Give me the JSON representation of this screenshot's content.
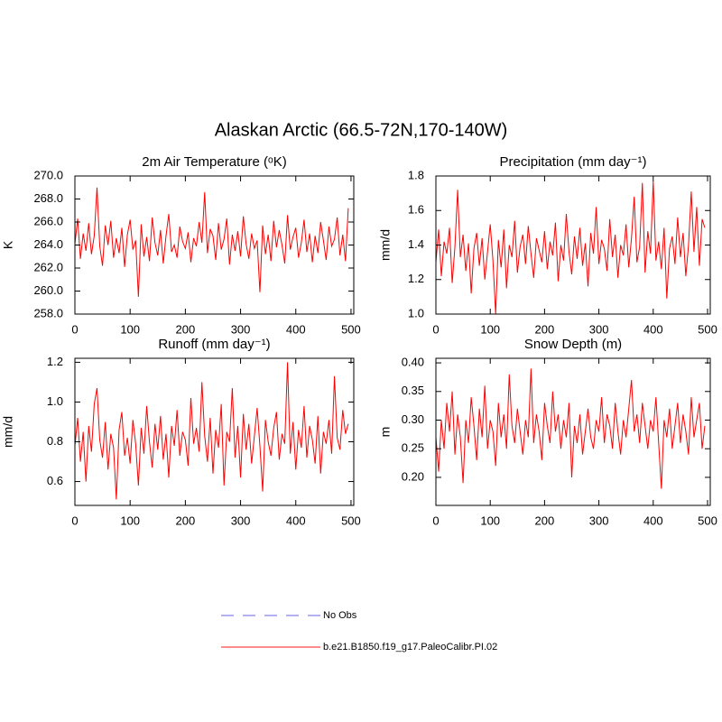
{
  "title": "Alaskan Arctic (66.5-72N,170-140W)",
  "legend": [
    {
      "label": "No Obs",
      "color": "#9999ee",
      "dash": "dashed"
    },
    {
      "label": "b.e21.B1850.f19_g17.PaleoCalibr.PI.02",
      "color": "#ff6666",
      "dash": "solid"
    }
  ],
  "chart_data": [
    {
      "type": "line",
      "title": "2m Air Temperature (ᵒK)",
      "ylabel": "K",
      "x": [
        0,
        5,
        10,
        15,
        20,
        25,
        30,
        35,
        40,
        45,
        50,
        55,
        60,
        65,
        70,
        75,
        80,
        85,
        90,
        95,
        100,
        105,
        110,
        115,
        120,
        125,
        130,
        135,
        140,
        145,
        150,
        155,
        160,
        165,
        170,
        175,
        180,
        185,
        190,
        195,
        200,
        205,
        210,
        215,
        220,
        225,
        230,
        235,
        240,
        245,
        250,
        255,
        260,
        265,
        270,
        275,
        280,
        285,
        290,
        295,
        300,
        305,
        310,
        315,
        320,
        325,
        330,
        335,
        340,
        345,
        350,
        355,
        360,
        365,
        370,
        375,
        380,
        385,
        390,
        395,
        400,
        405,
        410,
        415,
        420,
        425,
        430,
        435,
        440,
        445,
        450,
        455,
        460,
        465,
        470,
        475,
        480,
        485,
        490,
        495
      ],
      "xlim": [
        0,
        505
      ],
      "xticks": [
        0,
        100,
        200,
        300,
        400,
        500
      ],
      "ylim": [
        258,
        270
      ],
      "yticks": [
        {
          "value": 258,
          "label": "258.0"
        },
        {
          "value": 260,
          "label": "260.0"
        },
        {
          "value": 262,
          "label": "262.0"
        },
        {
          "value": 264,
          "label": "264.0"
        },
        {
          "value": 266,
          "label": "266.0"
        },
        {
          "value": 268,
          "label": "268.0"
        },
        {
          "value": 270,
          "label": "270.0"
        }
      ],
      "series": [
        {
          "color": "#ff0000",
          "values": [
            264.1,
            266.3,
            262.8,
            265.0,
            263.5,
            265.9,
            263.2,
            264.8,
            269.0,
            263.9,
            262.2,
            265.7,
            264.0,
            266.1,
            262.9,
            264.6,
            263.3,
            265.5,
            262.1,
            264.9,
            266.2,
            263.6,
            264.4,
            259.5,
            265.8,
            263.0,
            264.7,
            262.6,
            266.4,
            264.2,
            263.1,
            265.3,
            262.4,
            264.8,
            266.7,
            263.4,
            264.0,
            262.9,
            265.6,
            264.3,
            263.7,
            265.1,
            262.5,
            264.6,
            263.9,
            266.0,
            264.2,
            268.6,
            263.3,
            265.4,
            264.8,
            262.7,
            265.9,
            263.6,
            264.5,
            266.3,
            262.3,
            264.9,
            263.5,
            265.2,
            263.0,
            266.5,
            264.1,
            262.8,
            265.0,
            263.7,
            264.4,
            259.9,
            265.7,
            263.2,
            264.9,
            262.6,
            266.1,
            263.8,
            265.3,
            264.0,
            262.4,
            266.6,
            263.6,
            264.7,
            265.5,
            262.9,
            264.2,
            266.2,
            263.4,
            265.0,
            262.5,
            264.8,
            263.3,
            266.0,
            264.4,
            262.7,
            265.6,
            263.9,
            264.5,
            266.4,
            263.1,
            264.9,
            262.6,
            267.2
          ]
        }
      ]
    },
    {
      "type": "line",
      "title": "Precipitation (mm day⁻¹)",
      "ylabel": "mm/d",
      "x": [
        0,
        5,
        10,
        15,
        20,
        25,
        30,
        35,
        40,
        45,
        50,
        55,
        60,
        65,
        70,
        75,
        80,
        85,
        90,
        95,
        100,
        105,
        110,
        115,
        120,
        125,
        130,
        135,
        140,
        145,
        150,
        155,
        160,
        165,
        170,
        175,
        180,
        185,
        190,
        195,
        200,
        205,
        210,
        215,
        220,
        225,
        230,
        235,
        240,
        245,
        250,
        255,
        260,
        265,
        270,
        275,
        280,
        285,
        290,
        295,
        300,
        305,
        310,
        315,
        320,
        325,
        330,
        335,
        340,
        345,
        350,
        355,
        360,
        365,
        370,
        375,
        380,
        385,
        390,
        395,
        400,
        405,
        410,
        415,
        420,
        425,
        430,
        435,
        440,
        445,
        450,
        455,
        460,
        465,
        470,
        475,
        480,
        485,
        490,
        495
      ],
      "xlim": [
        0,
        505
      ],
      "xticks": [
        0,
        100,
        200,
        300,
        400,
        500
      ],
      "ylim": [
        1.0,
        1.8
      ],
      "yticks": [
        {
          "value": 1.0,
          "label": "1.0"
        },
        1.2,
        1.4,
        1.6,
        1.8
      ],
      "series": [
        {
          "color": "#ff0000",
          "values": [
            1.3,
            1.49,
            1.22,
            1.42,
            1.35,
            1.5,
            1.18,
            1.39,
            1.72,
            1.33,
            1.46,
            1.25,
            1.41,
            1.12,
            1.38,
            1.47,
            1.28,
            1.44,
            1.2,
            1.36,
            1.52,
            1.31,
            1.0,
            1.43,
            1.27,
            1.49,
            1.15,
            1.4,
            1.33,
            1.54,
            1.24,
            1.39,
            1.46,
            1.29,
            1.51,
            1.35,
            1.21,
            1.44,
            1.37,
            1.3,
            1.48,
            1.26,
            1.42,
            1.34,
            1.53,
            1.19,
            1.4,
            1.31,
            1.58,
            1.36,
            1.23,
            1.45,
            1.32,
            1.5,
            1.28,
            1.41,
            1.16,
            1.47,
            1.35,
            1.62,
            1.29,
            1.43,
            1.38,
            1.25,
            1.55,
            1.33,
            1.46,
            1.21,
            1.4,
            1.34,
            1.52,
            1.27,
            1.44,
            1.68,
            1.3,
            1.39,
            1.76,
            1.24,
            1.48,
            1.35,
            1.77,
            1.31,
            1.42,
            1.26,
            1.5,
            1.09,
            1.38,
            1.45,
            1.29,
            1.56,
            1.33,
            1.47,
            1.22,
            1.4,
            1.71,
            1.36,
            1.62,
            1.28,
            1.55,
            1.5
          ]
        }
      ]
    },
    {
      "type": "line",
      "title": "Runoff (mm day⁻¹)",
      "ylabel": "mm/d",
      "x": [
        0,
        5,
        10,
        15,
        20,
        25,
        30,
        35,
        40,
        45,
        50,
        55,
        60,
        65,
        70,
        75,
        80,
        85,
        90,
        95,
        100,
        105,
        110,
        115,
        120,
        125,
        130,
        135,
        140,
        145,
        150,
        155,
        160,
        165,
        170,
        175,
        180,
        185,
        190,
        195,
        200,
        205,
        210,
        215,
        220,
        225,
        230,
        235,
        240,
        245,
        250,
        255,
        260,
        265,
        270,
        275,
        280,
        285,
        290,
        295,
        300,
        305,
        310,
        315,
        320,
        325,
        330,
        335,
        340,
        345,
        350,
        355,
        360,
        365,
        370,
        375,
        380,
        385,
        390,
        395,
        400,
        405,
        410,
        415,
        420,
        425,
        430,
        435,
        440,
        445,
        450,
        455,
        460,
        465,
        470,
        475,
        480,
        485,
        490,
        495
      ],
      "xlim": [
        0,
        505
      ],
      "xticks": [
        0,
        100,
        200,
        300,
        400,
        500
      ],
      "ylim": [
        0.48,
        1.22
      ],
      "yticks": [
        0.6,
        0.8,
        {
          "value": 1.0,
          "label": "1.0"
        },
        1.2
      ],
      "series": [
        {
          "color": "#ff0000",
          "values": [
            0.78,
            0.92,
            0.7,
            0.85,
            0.6,
            0.88,
            0.75,
            0.99,
            1.07,
            0.81,
            0.72,
            0.9,
            0.66,
            0.84,
            0.77,
            0.51,
            0.86,
            0.95,
            0.73,
            0.82,
            0.69,
            0.91,
            0.79,
            0.58,
            0.87,
            0.74,
            0.98,
            0.8,
            0.67,
            0.89,
            0.76,
            0.93,
            0.71,
            0.84,
            0.62,
            0.88,
            0.78,
            0.96,
            0.73,
            0.85,
            0.81,
            0.68,
            1.02,
            0.79,
            0.87,
            0.75,
            1.1,
            0.83,
            0.7,
            0.92,
            0.64,
            0.86,
            0.77,
            0.99,
            0.58,
            0.85,
            0.8,
            1.07,
            0.72,
            0.88,
            0.62,
            0.94,
            0.76,
            0.89,
            0.69,
            0.83,
            0.97,
            0.78,
            0.55,
            0.91,
            0.8,
            0.73,
            0.87,
            0.95,
            0.71,
            0.84,
            0.79,
            1.2,
            0.74,
            0.9,
            0.66,
            0.86,
            0.77,
            0.98,
            0.72,
            0.88,
            0.81,
            0.69,
            0.93,
            0.64,
            0.85,
            0.79,
            0.91,
            0.74,
            1.13,
            0.82,
            0.76,
            0.96,
            0.84,
            0.89
          ]
        }
      ]
    },
    {
      "type": "line",
      "title": "Snow Depth (m)",
      "ylabel": "m",
      "x": [
        0,
        5,
        10,
        15,
        20,
        25,
        30,
        35,
        40,
        45,
        50,
        55,
        60,
        65,
        70,
        75,
        80,
        85,
        90,
        95,
        100,
        105,
        110,
        115,
        120,
        125,
        130,
        135,
        140,
        145,
        150,
        155,
        160,
        165,
        170,
        175,
        180,
        185,
        190,
        195,
        200,
        205,
        210,
        215,
        220,
        225,
        230,
        235,
        240,
        245,
        250,
        255,
        260,
        265,
        270,
        275,
        280,
        285,
        290,
        295,
        300,
        305,
        310,
        315,
        320,
        325,
        330,
        335,
        340,
        345,
        350,
        355,
        360,
        365,
        370,
        375,
        380,
        385,
        390,
        395,
        400,
        405,
        410,
        415,
        420,
        425,
        430,
        435,
        440,
        445,
        450,
        455,
        460,
        465,
        470,
        475,
        480,
        485,
        490,
        495
      ],
      "xlim": [
        0,
        505
      ],
      "xticks": [
        0,
        100,
        200,
        300,
        400,
        500
      ],
      "ylim": [
        0.151,
        0.408
      ],
      "yticks": [
        {
          "value": 0.2,
          "label": "0.20"
        },
        0.25,
        {
          "value": 0.3,
          "label": "0.30"
        },
        0.35,
        {
          "value": 0.4,
          "label": "0.40"
        }
      ],
      "series": [
        {
          "color": "#ff0000",
          "values": [
            0.27,
            0.21,
            0.3,
            0.25,
            0.33,
            0.28,
            0.35,
            0.24,
            0.31,
            0.27,
            0.19,
            0.3,
            0.26,
            0.34,
            0.29,
            0.23,
            0.32,
            0.27,
            0.36,
            0.25,
            0.3,
            0.28,
            0.22,
            0.33,
            0.27,
            0.31,
            0.25,
            0.38,
            0.29,
            0.26,
            0.32,
            0.28,
            0.24,
            0.3,
            0.27,
            0.39,
            0.26,
            0.31,
            0.28,
            0.23,
            0.33,
            0.29,
            0.26,
            0.35,
            0.28,
            0.31,
            0.25,
            0.3,
            0.27,
            0.33,
            0.2,
            0.29,
            0.26,
            0.31,
            0.24,
            0.28,
            0.32,
            0.27,
            0.25,
            0.3,
            0.28,
            0.34,
            0.26,
            0.31,
            0.29,
            0.25,
            0.33,
            0.28,
            0.24,
            0.3,
            0.27,
            0.32,
            0.37,
            0.28,
            0.31,
            0.26,
            0.33,
            0.29,
            0.25,
            0.3,
            0.28,
            0.34,
            0.26,
            0.18,
            0.3,
            0.27,
            0.32,
            0.25,
            0.29,
            0.33,
            0.26,
            0.31,
            0.28,
            0.24,
            0.34,
            0.27,
            0.3,
            0.33,
            0.25,
            0.29
          ]
        }
      ]
    }
  ]
}
